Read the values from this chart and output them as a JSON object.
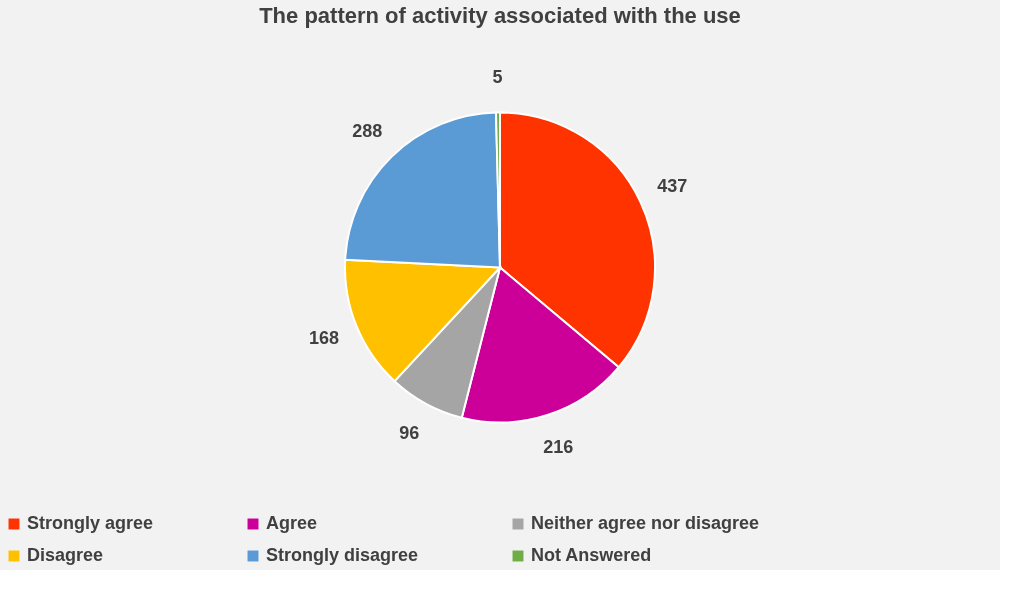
{
  "chart_data": {
    "type": "pie",
    "title": "The pattern of activity associated with the use",
    "categories": [
      "Strongly agree",
      "Agree",
      "Neither agree nor disagree",
      "Disagree",
      "Strongly disagree",
      "Not Answered"
    ],
    "values": [
      437,
      216,
      96,
      168,
      288,
      5
    ],
    "colors": [
      "#ff3300",
      "#cc0099",
      "#a5a5a5",
      "#ffc000",
      "#5b9bd5",
      "#70ad47"
    ],
    "data_labels": true,
    "legend": "bottom"
  }
}
